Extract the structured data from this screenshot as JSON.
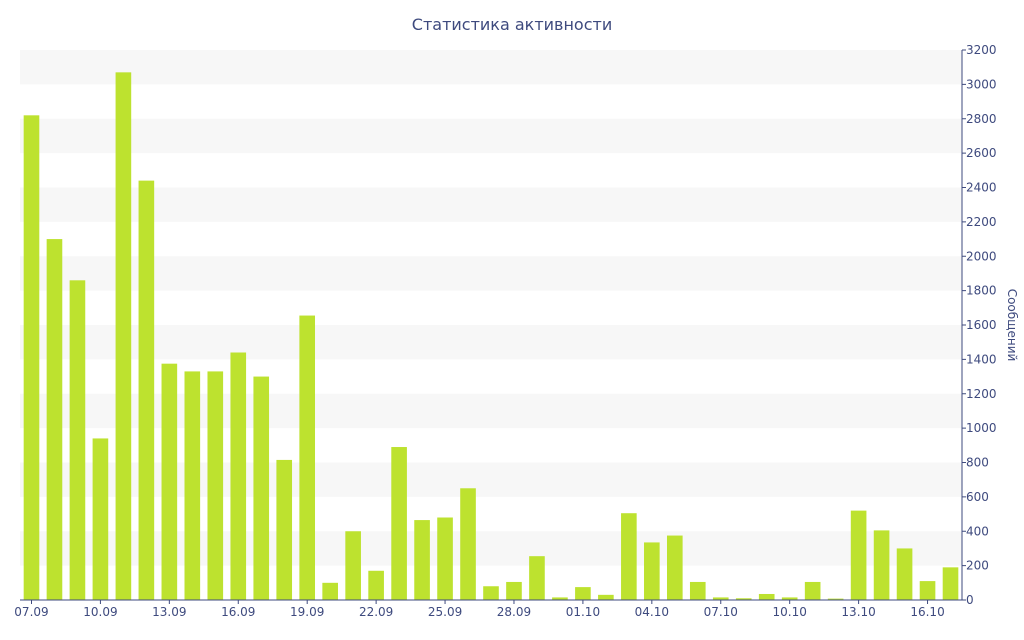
{
  "chart_data": {
    "type": "bar",
    "title": "Статистика активности",
    "ylabel": "Сообщений",
    "xlabel": "",
    "ylim": [
      0,
      3200
    ],
    "y_ticks": [
      0,
      200,
      400,
      600,
      800,
      1000,
      1200,
      1400,
      1600,
      1800,
      2000,
      2200,
      2400,
      2600,
      2800,
      3000,
      3200
    ],
    "x_tick_labels": [
      "07.09",
      "10.09",
      "13.09",
      "16.09",
      "19.09",
      "22.09",
      "25.09",
      "28.09",
      "01.10",
      "04.10",
      "07.10",
      "10.10",
      "13.10",
      "16.10"
    ],
    "x_tick_every": 3,
    "y_axis_side": "right",
    "grid": "alternating horizontal bands",
    "bar_color": "#bde22f",
    "text_color": "#3e4a7e",
    "values": [
      2820,
      2100,
      1860,
      940,
      3070,
      2440,
      1375,
      1330,
      1330,
      1440,
      1300,
      815,
      1655,
      100,
      400,
      170,
      890,
      465,
      480,
      650,
      80,
      105,
      255,
      15,
      75,
      30,
      505,
      335,
      375,
      105,
      15,
      10,
      35,
      15,
      105,
      8,
      520,
      405,
      300,
      110,
      190
    ]
  }
}
